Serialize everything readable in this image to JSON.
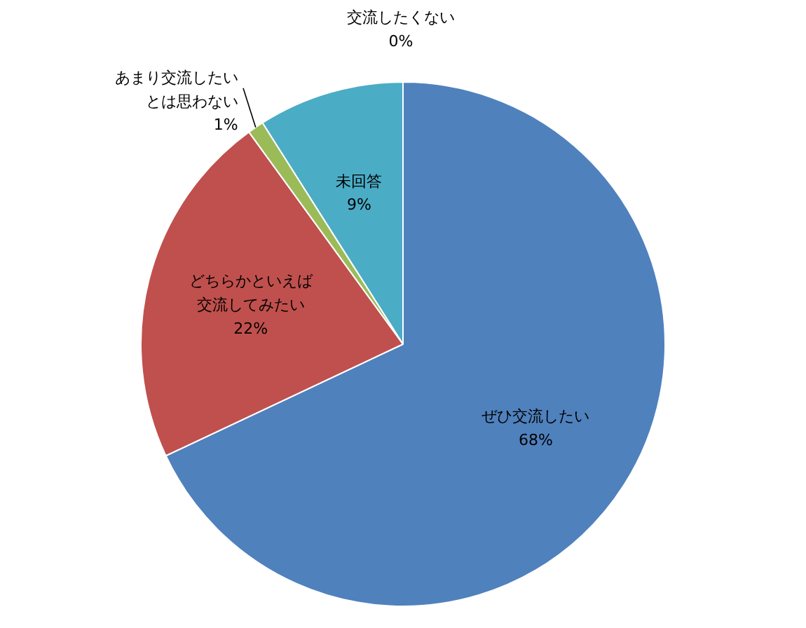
{
  "chart_data": {
    "type": "pie",
    "categories": [
      "ぜひ交流したい",
      "どちらかといえば交流してみたい",
      "あまり交流したいとは思わない",
      "交流したくない",
      "未回答"
    ],
    "values": [
      68,
      22,
      1,
      0,
      9
    ],
    "value_labels": [
      "68%",
      "22%",
      "1%",
      "0%",
      "9%"
    ],
    "colors": [
      "#4f81bd",
      "#c0504d",
      "#9bbb59",
      "#8064a2",
      "#4bacc6"
    ],
    "legend": false
  }
}
